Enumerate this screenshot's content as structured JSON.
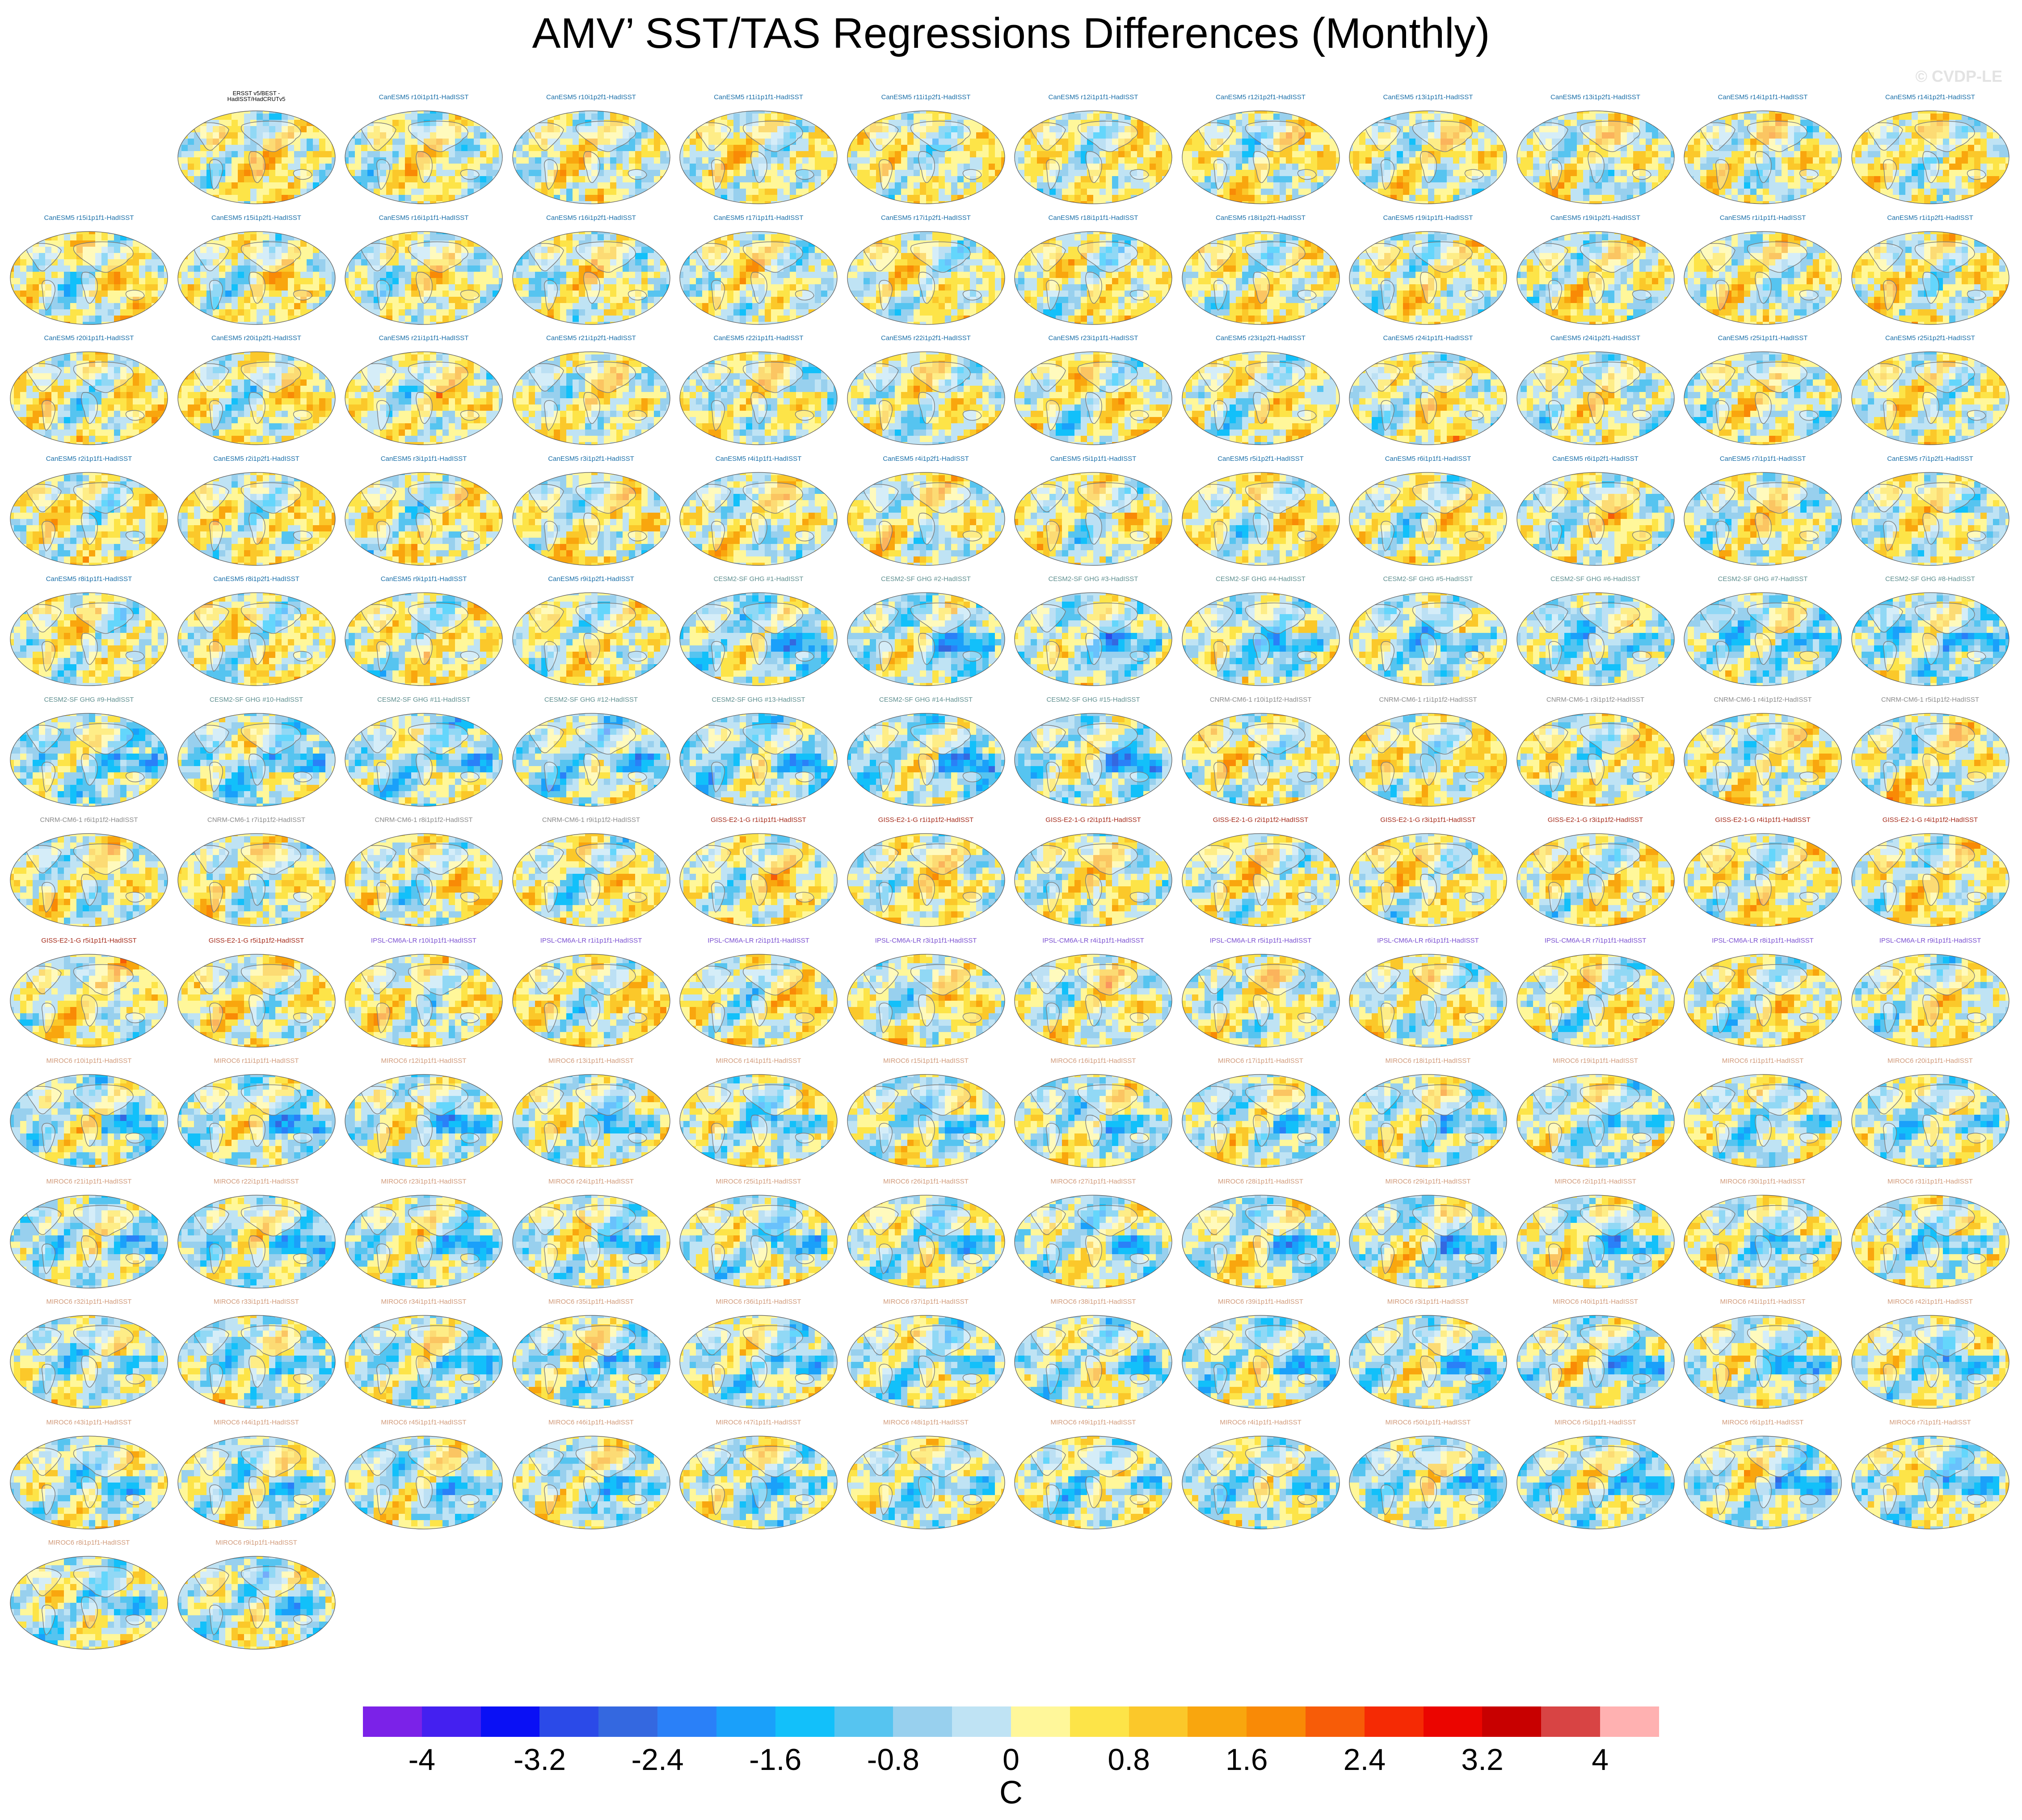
{
  "title": "AMV’ SST/TAS Regressions Differences (Monthly)",
  "watermark": "© CVDP-LE",
  "panels": [
    {
      "label": "ERSST v5/BEST -\nHadISST/HadCRUTv5",
      "color": "#000000",
      "field": "obs"
    },
    {
      "label": "CanESM5 r10i1p1f1-HadISST",
      "color": "#1a6fa8",
      "field": "can"
    },
    {
      "label": "CanESM5 r10i1p2f1-HadISST",
      "color": "#1a6fa8",
      "field": "can"
    },
    {
      "label": "CanESM5 r11i1p1f1-HadISST",
      "color": "#1a6fa8",
      "field": "can"
    },
    {
      "label": "CanESM5 r11i1p2f1-HadISST",
      "color": "#1a6fa8",
      "field": "can"
    },
    {
      "label": "CanESM5 r12i1p1f1-HadISST",
      "color": "#1a6fa8",
      "field": "can"
    },
    {
      "label": "CanESM5 r12i1p2f1-HadISST",
      "color": "#1a6fa8",
      "field": "can"
    },
    {
      "label": "CanESM5 r13i1p1f1-HadISST",
      "color": "#1a6fa8",
      "field": "can"
    },
    {
      "label": "CanESM5 r13i1p2f1-HadISST",
      "color": "#1a6fa8",
      "field": "can"
    },
    {
      "label": "CanESM5 r14i1p1f1-HadISST",
      "color": "#1a6fa8",
      "field": "can"
    },
    {
      "label": "CanESM5 r14i1p2f1-HadISST",
      "color": "#1a6fa8",
      "field": "can"
    },
    {
      "label": "CanESM5 r15i1p1f1-HadISST",
      "color": "#1a6fa8",
      "field": "can"
    },
    {
      "label": "CanESM5 r15i1p2f1-HadISST",
      "color": "#1a6fa8",
      "field": "can"
    },
    {
      "label": "CanESM5 r16i1p1f1-HadISST",
      "color": "#1a6fa8",
      "field": "can"
    },
    {
      "label": "CanESM5 r16i1p2f1-HadISST",
      "color": "#1a6fa8",
      "field": "can"
    },
    {
      "label": "CanESM5 r17i1p1f1-HadISST",
      "color": "#1a6fa8",
      "field": "can"
    },
    {
      "label": "CanESM5 r17i1p2f1-HadISST",
      "color": "#1a6fa8",
      "field": "can"
    },
    {
      "label": "CanESM5 r18i1p1f1-HadISST",
      "color": "#1a6fa8",
      "field": "can"
    },
    {
      "label": "CanESM5 r18i1p2f1-HadISST",
      "color": "#1a6fa8",
      "field": "can"
    },
    {
      "label": "CanESM5 r19i1p1f1-HadISST",
      "color": "#1a6fa8",
      "field": "can"
    },
    {
      "label": "CanESM5 r19i1p2f1-HadISST",
      "color": "#1a6fa8",
      "field": "can"
    },
    {
      "label": "CanESM5 r1i1p1f1-HadISST",
      "color": "#1a6fa8",
      "field": "can"
    },
    {
      "label": "CanESM5 r1i1p2f1-HadISST",
      "color": "#1a6fa8",
      "field": "can"
    },
    {
      "label": "CanESM5 r20i1p1f1-HadISST",
      "color": "#1a6fa8",
      "field": "can"
    },
    {
      "label": "CanESM5 r20i1p2f1-HadISST",
      "color": "#1a6fa8",
      "field": "can"
    },
    {
      "label": "CanESM5 r21i1p1f1-HadISST",
      "color": "#1a6fa8",
      "field": "can"
    },
    {
      "label": "CanESM5 r21i1p2f1-HadISST",
      "color": "#1a6fa8",
      "field": "can"
    },
    {
      "label": "CanESM5 r22i1p1f1-HadISST",
      "color": "#1a6fa8",
      "field": "can"
    },
    {
      "label": "CanESM5 r22i1p2f1-HadISST",
      "color": "#1a6fa8",
      "field": "can"
    },
    {
      "label": "CanESM5 r23i1p1f1-HadISST",
      "color": "#1a6fa8",
      "field": "can"
    },
    {
      "label": "CanESM5 r23i1p2f1-HadISST",
      "color": "#1a6fa8",
      "field": "can"
    },
    {
      "label": "CanESM5 r24i1p1f1-HadISST",
      "color": "#1a6fa8",
      "field": "can"
    },
    {
      "label": "CanESM5 r24i1p2f1-HadISST",
      "color": "#1a6fa8",
      "field": "can"
    },
    {
      "label": "CanESM5 r25i1p1f1-HadISST",
      "color": "#1a6fa8",
      "field": "can"
    },
    {
      "label": "CanESM5 r25i1p2f1-HadISST",
      "color": "#1a6fa8",
      "field": "can"
    },
    {
      "label": "CanESM5 r2i1p1f1-HadISST",
      "color": "#1a6fa8",
      "field": "can"
    },
    {
      "label": "CanESM5 r2i1p2f1-HadISST",
      "color": "#1a6fa8",
      "field": "can"
    },
    {
      "label": "CanESM5 r3i1p1f1-HadISST",
      "color": "#1a6fa8",
      "field": "can"
    },
    {
      "label": "CanESM5 r3i1p2f1-HadISST",
      "color": "#1a6fa8",
      "field": "can"
    },
    {
      "label": "CanESM5 r4i1p1f1-HadISST",
      "color": "#1a6fa8",
      "field": "can"
    },
    {
      "label": "CanESM5 r4i1p2f1-HadISST",
      "color": "#1a6fa8",
      "field": "can"
    },
    {
      "label": "CanESM5 r5i1p1f1-HadISST",
      "color": "#1a6fa8",
      "field": "can"
    },
    {
      "label": "CanESM5 r5i1p2f1-HadISST",
      "color": "#1a6fa8",
      "field": "can"
    },
    {
      "label": "CanESM5 r6i1p1f1-HadISST",
      "color": "#1a6fa8",
      "field": "can"
    },
    {
      "label": "CanESM5 r6i1p2f1-HadISST",
      "color": "#1a6fa8",
      "field": "can"
    },
    {
      "label": "CanESM5 r7i1p1f1-HadISST",
      "color": "#1a6fa8",
      "field": "can"
    },
    {
      "label": "CanESM5 r7i1p2f1-HadISST",
      "color": "#1a6fa8",
      "field": "can"
    },
    {
      "label": "CanESM5 r8i1p1f1-HadISST",
      "color": "#1a6fa8",
      "field": "can"
    },
    {
      "label": "CanESM5 r8i1p2f1-HadISST",
      "color": "#1a6fa8",
      "field": "can"
    },
    {
      "label": "CanESM5 r9i1p1f1-HadISST",
      "color": "#1a6fa8",
      "field": "can"
    },
    {
      "label": "CanESM5 r9i1p2f1-HadISST",
      "color": "#1a6fa8",
      "field": "can"
    },
    {
      "label": "CESM2-SF GHG #1-HadISST",
      "color": "#5f8f8f",
      "field": "cesm"
    },
    {
      "label": "CESM2-SF GHG #2-HadISST",
      "color": "#5f8f8f",
      "field": "cesm"
    },
    {
      "label": "CESM2-SF GHG #3-HadISST",
      "color": "#5f8f8f",
      "field": "cesm"
    },
    {
      "label": "CESM2-SF GHG #4-HadISST",
      "color": "#5f8f8f",
      "field": "cesm"
    },
    {
      "label": "CESM2-SF GHG #5-HadISST",
      "color": "#5f8f8f",
      "field": "cesm"
    },
    {
      "label": "CESM2-SF GHG #6-HadISST",
      "color": "#5f8f8f",
      "field": "cesm"
    },
    {
      "label": "CESM2-SF GHG #7-HadISST",
      "color": "#5f8f8f",
      "field": "cesm"
    },
    {
      "label": "CESM2-SF GHG #8-HadISST",
      "color": "#5f8f8f",
      "field": "cesm"
    },
    {
      "label": "CESM2-SF GHG #9-HadISST",
      "color": "#5f8f8f",
      "field": "cesm"
    },
    {
      "label": "CESM2-SF GHG #10-HadISST",
      "color": "#5f8f8f",
      "field": "cesm"
    },
    {
      "label": "CESM2-SF GHG #11-HadISST",
      "color": "#5f8f8f",
      "field": "cesm"
    },
    {
      "label": "CESM2-SF GHG #12-HadISST",
      "color": "#5f8f8f",
      "field": "cesm"
    },
    {
      "label": "CESM2-SF GHG #13-HadISST",
      "color": "#5f8f8f",
      "field": "cesm"
    },
    {
      "label": "CESM2-SF GHG #14-HadISST",
      "color": "#5f8f8f",
      "field": "cesm"
    },
    {
      "label": "CESM2-SF GHG #15-HadISST",
      "color": "#5f8f8f",
      "field": "cesm"
    },
    {
      "label": "CNRM-CM6-1 r10i1p1f2-HadISST",
      "color": "#8a8a8a",
      "field": "cnrm"
    },
    {
      "label": "CNRM-CM6-1 r1i1p1f2-HadISST",
      "color": "#8a8a8a",
      "field": "cnrm"
    },
    {
      "label": "CNRM-CM6-1 r3i1p1f2-HadISST",
      "color": "#8a8a8a",
      "field": "cnrm"
    },
    {
      "label": "CNRM-CM6-1 r4i1p1f2-HadISST",
      "color": "#8a8a8a",
      "field": "cnrm"
    },
    {
      "label": "CNRM-CM6-1 r5i1p1f2-HadISST",
      "color": "#8a8a8a",
      "field": "cnrm"
    },
    {
      "label": "CNRM-CM6-1 r6i1p1f2-HadISST",
      "color": "#8a8a8a",
      "field": "cnrm"
    },
    {
      "label": "CNRM-CM6-1 r7i1p1f2-HadISST",
      "color": "#8a8a8a",
      "field": "cnrm"
    },
    {
      "label": "CNRM-CM6-1 r8i1p1f2-HadISST",
      "color": "#8a8a8a",
      "field": "cnrm"
    },
    {
      "label": "CNRM-CM6-1 r9i1p1f2-HadISST",
      "color": "#8a8a8a",
      "field": "cnrm"
    },
    {
      "label": "GISS-E2-1-G r1i1p1f1-HadISST",
      "color": "#a52a1a",
      "field": "giss"
    },
    {
      "label": "GISS-E2-1-G r1i1p1f2-HadISST",
      "color": "#a52a1a",
      "field": "giss"
    },
    {
      "label": "GISS-E2-1-G r2i1p1f1-HadISST",
      "color": "#a52a1a",
      "field": "giss"
    },
    {
      "label": "GISS-E2-1-G r2i1p1f2-HadISST",
      "color": "#a52a1a",
      "field": "giss"
    },
    {
      "label": "GISS-E2-1-G r3i1p1f1-HadISST",
      "color": "#a52a1a",
      "field": "giss"
    },
    {
      "label": "GISS-E2-1-G r3i1p1f2-HadISST",
      "color": "#a52a1a",
      "field": "giss"
    },
    {
      "label": "GISS-E2-1-G r4i1p1f1-HadISST",
      "color": "#a52a1a",
      "field": "giss"
    },
    {
      "label": "GISS-E2-1-G r4i1p1f2-HadISST",
      "color": "#a52a1a",
      "field": "giss"
    },
    {
      "label": "GISS-E2-1-G r5i1p1f1-HadISST",
      "color": "#a52a1a",
      "field": "giss"
    },
    {
      "label": "GISS-E2-1-G r5i1p1f2-HadISST",
      "color": "#a52a1a",
      "field": "giss"
    },
    {
      "label": "IPSL-CM6A-LR r10i1p1f1-HadISST",
      "color": "#7a4fd1",
      "field": "ipsl"
    },
    {
      "label": "IPSL-CM6A-LR r1i1p1f1-HadISST",
      "color": "#7a4fd1",
      "field": "ipsl"
    },
    {
      "label": "IPSL-CM6A-LR r2i1p1f1-HadISST",
      "color": "#7a4fd1",
      "field": "ipsl"
    },
    {
      "label": "IPSL-CM6A-LR r3i1p1f1-HadISST",
      "color": "#7a4fd1",
      "field": "ipsl"
    },
    {
      "label": "IPSL-CM6A-LR r4i1p1f1-HadISST",
      "color": "#7a4fd1",
      "field": "ipsl"
    },
    {
      "label": "IPSL-CM6A-LR r5i1p1f1-HadISST",
      "color": "#7a4fd1",
      "field": "ipsl"
    },
    {
      "label": "IPSL-CM6A-LR r6i1p1f1-HadISST",
      "color": "#7a4fd1",
      "field": "ipsl"
    },
    {
      "label": "IPSL-CM6A-LR r7i1p1f1-HadISST",
      "color": "#7a4fd1",
      "field": "ipsl"
    },
    {
      "label": "IPSL-CM6A-LR r8i1p1f1-HadISST",
      "color": "#7a4fd1",
      "field": "ipsl"
    },
    {
      "label": "IPSL-CM6A-LR r9i1p1f1-HadISST",
      "color": "#7a4fd1",
      "field": "ipsl"
    },
    {
      "label": "MIROC6 r10i1p1f1-HadISST",
      "color": "#d19a7a",
      "field": "miroc"
    },
    {
      "label": "MIROC6 r11i1p1f1-HadISST",
      "color": "#d19a7a",
      "field": "miroc"
    },
    {
      "label": "MIROC6 r12i1p1f1-HadISST",
      "color": "#d19a7a",
      "field": "miroc"
    },
    {
      "label": "MIROC6 r13i1p1f1-HadISST",
      "color": "#d19a7a",
      "field": "miroc"
    },
    {
      "label": "MIROC6 r14i1p1f1-HadISST",
      "color": "#d19a7a",
      "field": "miroc"
    },
    {
      "label": "MIROC6 r15i1p1f1-HadISST",
      "color": "#d19a7a",
      "field": "miroc"
    },
    {
      "label": "MIROC6 r16i1p1f1-HadISST",
      "color": "#d19a7a",
      "field": "miroc"
    },
    {
      "label": "MIROC6 r17i1p1f1-HadISST",
      "color": "#d19a7a",
      "field": "miroc"
    },
    {
      "label": "MIROC6 r18i1p1f1-HadISST",
      "color": "#d19a7a",
      "field": "miroc"
    },
    {
      "label": "MIROC6 r19i1p1f1-HadISST",
      "color": "#d19a7a",
      "field": "miroc"
    },
    {
      "label": "MIROC6 r1i1p1f1-HadISST",
      "color": "#d19a7a",
      "field": "miroc"
    },
    {
      "label": "MIROC6 r20i1p1f1-HadISST",
      "color": "#d19a7a",
      "field": "miroc"
    },
    {
      "label": "MIROC6 r21i1p1f1-HadISST",
      "color": "#d19a7a",
      "field": "miroc"
    },
    {
      "label": "MIROC6 r22i1p1f1-HadISST",
      "color": "#d19a7a",
      "field": "miroc"
    },
    {
      "label": "MIROC6 r23i1p1f1-HadISST",
      "color": "#d19a7a",
      "field": "miroc"
    },
    {
      "label": "MIROC6 r24i1p1f1-HadISST",
      "color": "#d19a7a",
      "field": "miroc"
    },
    {
      "label": "MIROC6 r25i1p1f1-HadISST",
      "color": "#d19a7a",
      "field": "miroc"
    },
    {
      "label": "MIROC6 r26i1p1f1-HadISST",
      "color": "#d19a7a",
      "field": "miroc"
    },
    {
      "label": "MIROC6 r27i1p1f1-HadISST",
      "color": "#d19a7a",
      "field": "miroc"
    },
    {
      "label": "MIROC6 r28i1p1f1-HadISST",
      "color": "#d19a7a",
      "field": "miroc"
    },
    {
      "label": "MIROC6 r29i1p1f1-HadISST",
      "color": "#d19a7a",
      "field": "miroc"
    },
    {
      "label": "MIROC6 r2i1p1f1-HadISST",
      "color": "#d19a7a",
      "field": "miroc"
    },
    {
      "label": "MIROC6 r30i1p1f1-HadISST",
      "color": "#d19a7a",
      "field": "miroc"
    },
    {
      "label": "MIROC6 r31i1p1f1-HadISST",
      "color": "#d19a7a",
      "field": "miroc"
    },
    {
      "label": "MIROC6 r32i1p1f1-HadISST",
      "color": "#d19a7a",
      "field": "miroc"
    },
    {
      "label": "MIROC6 r33i1p1f1-HadISST",
      "color": "#d19a7a",
      "field": "miroc"
    },
    {
      "label": "MIROC6 r34i1p1f1-HadISST",
      "color": "#d19a7a",
      "field": "miroc"
    },
    {
      "label": "MIROC6 r35i1p1f1-HadISST",
      "color": "#d19a7a",
      "field": "miroc"
    },
    {
      "label": "MIROC6 r36i1p1f1-HadISST",
      "color": "#d19a7a",
      "field": "miroc"
    },
    {
      "label": "MIROC6 r37i1p1f1-HadISST",
      "color": "#d19a7a",
      "field": "miroc"
    },
    {
      "label": "MIROC6 r38i1p1f1-HadISST",
      "color": "#d19a7a",
      "field": "miroc"
    },
    {
      "label": "MIROC6 r39i1p1f1-HadISST",
      "color": "#d19a7a",
      "field": "miroc"
    },
    {
      "label": "MIROC6 r3i1p1f1-HadISST",
      "color": "#d19a7a",
      "field": "miroc"
    },
    {
      "label": "MIROC6 r40i1p1f1-HadISST",
      "color": "#d19a7a",
      "field": "miroc"
    },
    {
      "label": "MIROC6 r41i1p1f1-HadISST",
      "color": "#d19a7a",
      "field": "miroc"
    },
    {
      "label": "MIROC6 r42i1p1f1-HadISST",
      "color": "#d19a7a",
      "field": "miroc"
    },
    {
      "label": "MIROC6 r43i1p1f1-HadISST",
      "color": "#d19a7a",
      "field": "miroc"
    },
    {
      "label": "MIROC6 r44i1p1f1-HadISST",
      "color": "#d19a7a",
      "field": "miroc"
    },
    {
      "label": "MIROC6 r45i1p1f1-HadISST",
      "color": "#d19a7a",
      "field": "miroc"
    },
    {
      "label": "MIROC6 r46i1p1f1-HadISST",
      "color": "#d19a7a",
      "field": "miroc"
    },
    {
      "label": "MIROC6 r47i1p1f1-HadISST",
      "color": "#d19a7a",
      "field": "miroc"
    },
    {
      "label": "MIROC6 r48i1p1f1-HadISST",
      "color": "#d19a7a",
      "field": "miroc"
    },
    {
      "label": "MIROC6 r49i1p1f1-HadISST",
      "color": "#d19a7a",
      "field": "miroc"
    },
    {
      "label": "MIROC6 r4i1p1f1-HadISST",
      "color": "#d19a7a",
      "field": "miroc"
    },
    {
      "label": "MIROC6 r50i1p1f1-HadISST",
      "color": "#d19a7a",
      "field": "miroc"
    },
    {
      "label": "MIROC6 r5i1p1f1-HadISST",
      "color": "#d19a7a",
      "field": "miroc"
    },
    {
      "label": "MIROC6 r6i1p1f1-HadISST",
      "color": "#d19a7a",
      "field": "miroc"
    },
    {
      "label": "MIROC6 r7i1p1f1-HadISST",
      "color": "#d19a7a",
      "field": "miroc"
    },
    {
      "label": "MIROC6 r8i1p1f1-HadISST",
      "color": "#d19a7a",
      "field": "miroc"
    },
    {
      "label": "MIROC6 r9i1p1f1-HadISST",
      "color": "#d19a7a",
      "field": "miroc"
    }
  ],
  "colorbar": {
    "colors": [
      "#7b22e8",
      "#4420f0",
      "#0a10f5",
      "#2b4ae8",
      "#3468e0",
      "#2a80f8",
      "#1aa0fa",
      "#12c0fa",
      "#56c4f0",
      "#98d0ee",
      "#bfe3f4",
      "#fff79a",
      "#fde448",
      "#fbc82a",
      "#f9a60e",
      "#f98a06",
      "#f75c08",
      "#f52a04",
      "#eb0500",
      "#c80000",
      "#d84444",
      "#ffb1b1"
    ],
    "tick_labels": [
      "-4",
      "-3.2",
      "-2.4",
      "-1.6",
      "-0.8",
      "0",
      "0.8",
      "1.6",
      "2.4",
      "3.2",
      "4"
    ],
    "unit": "C"
  }
}
